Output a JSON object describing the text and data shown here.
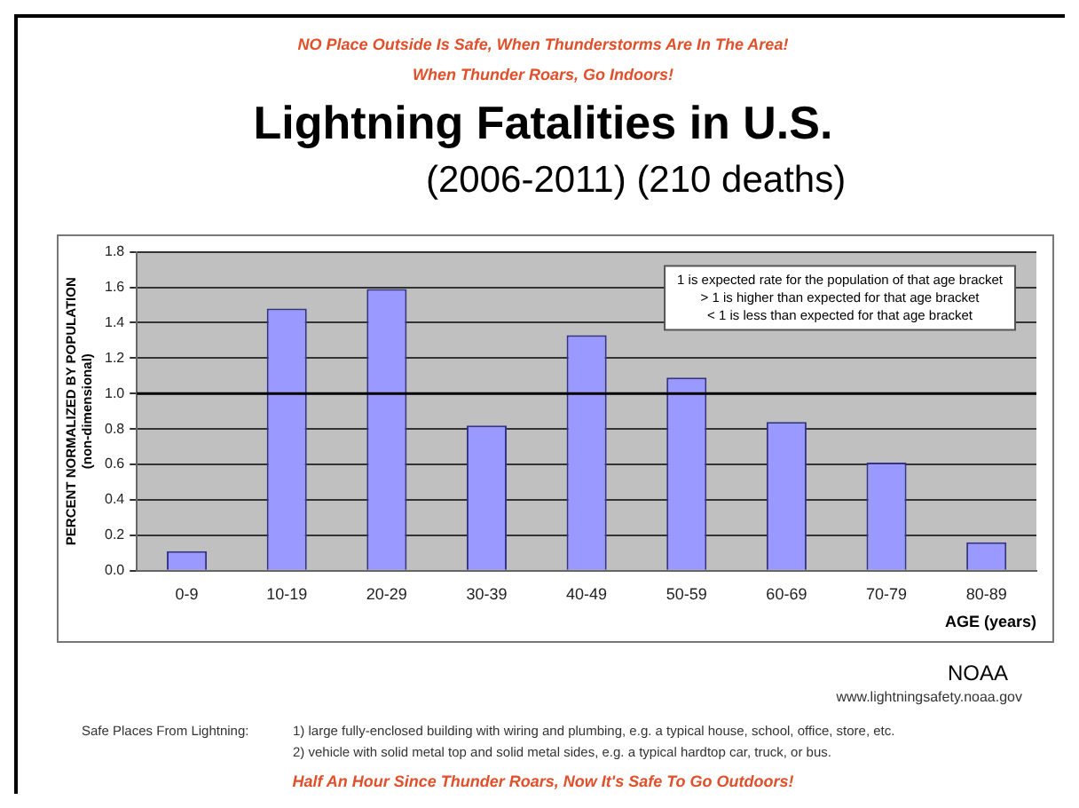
{
  "chart_data": {
    "type": "bar",
    "title": "Lightning Fatalities in U.S.",
    "subtitle": "(2006-2011) (210 deaths)",
    "xlabel": "AGE (years)",
    "ylabel": "PERCENT NORMALIZED BY POPULATION\n(non-dimensional)",
    "categories": [
      "0-9",
      "10-19",
      "20-29",
      "30-39",
      "40-49",
      "50-59",
      "60-69",
      "70-79",
      "80-89"
    ],
    "values": [
      0.11,
      1.48,
      1.59,
      0.82,
      1.33,
      1.09,
      0.84,
      0.61,
      0.16
    ],
    "color": "#9999ff",
    "ylim": [
      0,
      1.8
    ],
    "yticks": [
      {
        "value": 0,
        "label": "0.0"
      },
      0.2,
      0.4,
      0.6,
      0.8,
      {
        "value": 1,
        "label": "1.0"
      },
      1.2,
      1.4,
      1.6,
      1.8
    ],
    "grid": "y",
    "legend": false,
    "ref_lines": [
      {
        "axis": "y",
        "value": 1,
        "color": "#000000"
      }
    ],
    "annotations": [
      "NO Place Outside Is Safe, When Thunderstorms Are In The Area!",
      "When Thunder Roars, Go Indoors!",
      "1 is expected rate for the population of that age bracket\n> 1 is higher than expected for that age bracket\n< 1 is less than expected for that age bracket",
      "NOAA",
      "www.lightningsafety.noaa.gov",
      "Safe Places From Lightning:",
      "1) large fully-enclosed building with wiring and plumbing, e.g. a typical house, school, office, store, etc.",
      "2) vehicle with solid metal top and solid metal sides, e.g. a typical hardtop car, truck, or bus.",
      "Half An Hour Since Thunder Roars, Now It's Safe To Go Outdoors!"
    ]
  }
}
